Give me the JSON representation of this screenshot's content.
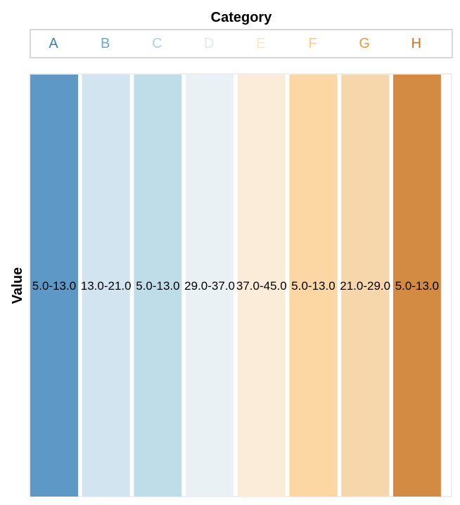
{
  "chart_data": {
    "type": "heatmap",
    "title": "Category",
    "xlabel": "",
    "ylabel": "Value",
    "legend_position": "top",
    "grid": false,
    "categories": [
      "A",
      "B",
      "C",
      "D",
      "E",
      "F",
      "G",
      "H"
    ],
    "labels": [
      "5.0-13.0",
      "13.0-21.0",
      "5.0-13.0",
      "29.0-37.0",
      "37.0-45.0",
      "5.0-13.0",
      "21.0-29.0",
      "5.0-13.0"
    ],
    "colors": [
      "#5e98c6",
      "#d2e4f0",
      "#bfdce9",
      "#eaf1f5",
      "#fbecd9",
      "#fcd6a3",
      "#f6d6ab",
      "#d38a42"
    ],
    "legend_colors": [
      "#3a7fb6",
      "#6aa9cd",
      "#a9d2e2",
      "#e0e8ec",
      "#fbe6cc",
      "#f9cb8b",
      "#e89a3f",
      "#c7731b"
    ]
  }
}
